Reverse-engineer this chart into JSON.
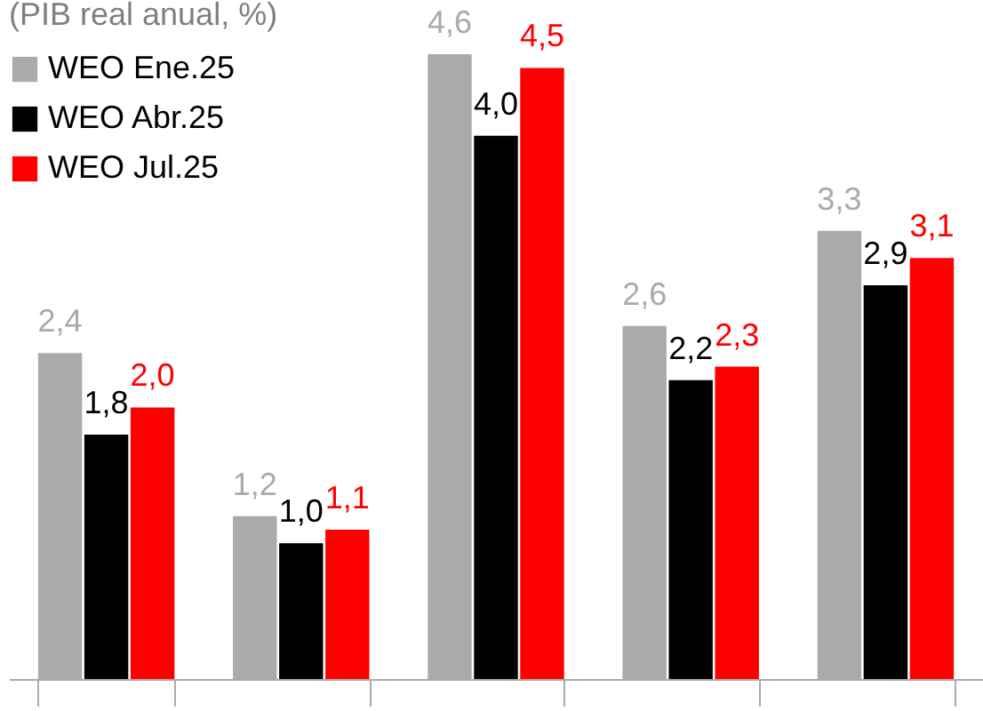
{
  "chart_data": {
    "type": "bar",
    "legend_title": "(PIB real anual, %)",
    "legend": "top left",
    "categories": [
      null,
      null,
      null,
      null,
      null
    ],
    "series": [
      {
        "name": "WEO Ene.25",
        "color": "#aaaaaa",
        "values": [
          2.4,
          1.2,
          4.6,
          2.6,
          3.3
        ],
        "value_labels": [
          "2,4",
          "1,2",
          "4,6",
          "2,6",
          "3,3"
        ]
      },
      {
        "name": "WEO Abr.25",
        "color": "#000000",
        "values": [
          1.8,
          1.0,
          4.0,
          2.2,
          2.9
        ],
        "value_labels": [
          "1,8",
          "1,0",
          "4,0",
          "2,2",
          "2,9"
        ]
      },
      {
        "name": "WEO Jul.25",
        "color": "#ff0000",
        "values": [
          2.0,
          1.1,
          4.5,
          2.3,
          3.1
        ],
        "value_labels": [
          "2,0",
          "1,1",
          "4,5",
          "2,3",
          "3,1"
        ]
      }
    ]
  }
}
